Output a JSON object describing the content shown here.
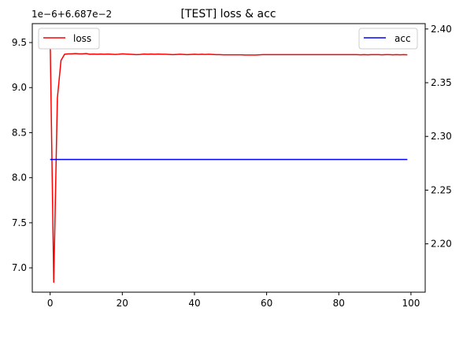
{
  "chart_data": {
    "type": "line",
    "title": "[TEST] loss & acc",
    "x_ticks": [
      0,
      20,
      40,
      60,
      80,
      100
    ],
    "xlim": [
      -4.95,
      103.95
    ],
    "left_axis": {
      "offset_label": "1e−6+6.687e−2",
      "ticks": [
        "7.0",
        "7.5",
        "8.0",
        "8.5",
        "9.0",
        "9.5"
      ],
      "tick_values": [
        7.0,
        7.5,
        8.0,
        8.5,
        9.0,
        9.5
      ],
      "ylim": [
        6.73,
        9.71
      ]
    },
    "right_axis": {
      "ticks": [
        "2.20",
        "2.25",
        "2.30",
        "2.35",
        "2.40"
      ],
      "tick_values": [
        2.2,
        2.25,
        2.3,
        2.35,
        2.4
      ],
      "ylim": [
        2.155,
        2.405
      ]
    },
    "series": [
      {
        "name": "loss",
        "color": "#ff0000",
        "axis": "left",
        "note_units": "values shown as offset-axis units (×1e-6 above 0.06687)",
        "x": [
          0,
          1,
          2,
          3,
          4,
          5,
          6,
          7,
          8,
          9,
          10,
          11,
          12,
          13,
          14,
          15,
          16,
          17,
          18,
          19,
          20,
          21,
          22,
          23,
          24,
          25,
          26,
          27,
          28,
          29,
          30,
          31,
          32,
          33,
          34,
          35,
          36,
          37,
          38,
          39,
          40,
          41,
          42,
          43,
          44,
          45,
          46,
          47,
          48,
          49,
          50,
          51,
          52,
          53,
          54,
          55,
          56,
          57,
          58,
          59,
          60,
          61,
          62,
          63,
          64,
          65,
          66,
          67,
          68,
          69,
          70,
          71,
          72,
          73,
          74,
          75,
          76,
          77,
          78,
          79,
          80,
          81,
          82,
          83,
          84,
          85,
          86,
          87,
          88,
          89,
          90,
          91,
          92,
          93,
          94,
          95,
          96,
          97,
          98,
          99
        ],
        "y": [
          9.55,
          6.84,
          8.88,
          9.3,
          9.37,
          9.375,
          9.375,
          9.378,
          9.375,
          9.375,
          9.378,
          9.37,
          9.372,
          9.37,
          9.372,
          9.37,
          9.372,
          9.37,
          9.368,
          9.37,
          9.375,
          9.372,
          9.37,
          9.368,
          9.366,
          9.368,
          9.372,
          9.37,
          9.372,
          9.37,
          9.372,
          9.37,
          9.37,
          9.368,
          9.366,
          9.368,
          9.37,
          9.368,
          9.366,
          9.368,
          9.37,
          9.368,
          9.37,
          9.368,
          9.37,
          9.368,
          9.366,
          9.366,
          9.364,
          9.364,
          9.364,
          9.364,
          9.364,
          9.364,
          9.362,
          9.362,
          9.362,
          9.362,
          9.364,
          9.366,
          9.366,
          9.366,
          9.366,
          9.366,
          9.366,
          9.366,
          9.366,
          9.366,
          9.366,
          9.366,
          9.366,
          9.366,
          9.366,
          9.366,
          9.366,
          9.366,
          9.366,
          9.366,
          9.366,
          9.366,
          9.366,
          9.366,
          9.366,
          9.366,
          9.366,
          9.366,
          9.364,
          9.366,
          9.364,
          9.366,
          9.366,
          9.366,
          9.364,
          9.366,
          9.366,
          9.364,
          9.366,
          9.364,
          9.366,
          9.364
        ]
      },
      {
        "name": "acc",
        "color": "#0000ff",
        "axis": "right",
        "x": [
          0,
          99
        ],
        "y": [
          2.2785,
          2.2785
        ]
      }
    ],
    "legend": [
      {
        "label": "loss",
        "color": "#ff0000",
        "placement": "upper-left"
      },
      {
        "label": "acc",
        "color": "#0000ff",
        "placement": "upper-right"
      }
    ],
    "grid": false
  }
}
